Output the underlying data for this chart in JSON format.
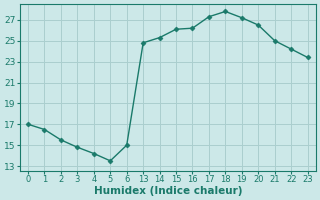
{
  "x_labels": [
    0,
    1,
    2,
    3,
    4,
    5,
    6,
    13,
    14,
    15,
    16,
    17,
    18,
    19,
    20,
    21,
    22,
    23
  ],
  "x_positions": [
    0,
    1,
    2,
    3,
    4,
    5,
    6,
    7,
    8,
    9,
    10,
    11,
    12,
    13,
    14,
    15,
    16,
    17
  ],
  "y": [
    17.0,
    16.5,
    15.5,
    14.8,
    14.2,
    13.5,
    15.0,
    24.8,
    25.3,
    26.1,
    26.2,
    27.3,
    27.8,
    27.2,
    26.5,
    25.0,
    24.2,
    23.4
  ],
  "yticks": [
    13,
    15,
    17,
    19,
    21,
    23,
    25,
    27
  ],
  "ylim": [
    12.5,
    28.5
  ],
  "xlim": [
    -0.5,
    17.5
  ],
  "xlabel": "Humidex (Indice chaleur)",
  "line_color": "#1a7a6a",
  "bg_color": "#cce8e8",
  "grid_color": "#aacece",
  "marker": "D",
  "markersize": 2.5,
  "linewidth": 1.0,
  "tick_fontsize": 6.0,
  "ytick_fontsize": 6.5,
  "xlabel_fontsize": 7.5
}
